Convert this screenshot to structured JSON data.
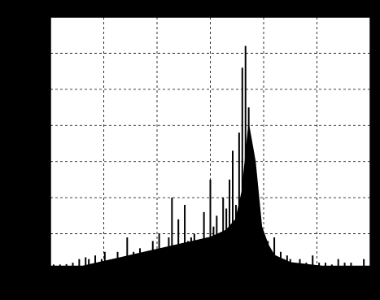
{
  "chart_data": {
    "type": "bar",
    "title": "",
    "xlabel": "",
    "ylabel": "",
    "grid": true,
    "x_grid_count": 6,
    "y_grid_count": 7,
    "xlim": [
      0,
      100
    ],
    "ylim": [
      0,
      70
    ],
    "colors": {
      "outer_background": "#000000",
      "axes_background": "#ffffff",
      "bars": "#000000",
      "grid": "#000000"
    },
    "series": [
      {
        "name": "",
        "x": [
          1,
          3,
          5,
          7,
          9,
          11,
          12,
          14,
          16,
          17,
          18,
          20,
          21,
          22,
          23,
          24,
          25,
          26,
          27,
          28,
          29,
          30,
          31,
          32,
          33,
          34,
          35,
          36,
          37,
          38,
          39,
          40,
          41,
          42,
          43,
          44,
          45,
          46,
          47,
          48,
          49,
          50,
          51,
          52,
          53,
          54,
          55,
          56,
          57,
          58,
          59,
          60,
          61,
          62,
          63,
          64,
          65,
          66,
          67,
          68,
          69,
          70,
          71,
          72,
          73,
          74,
          75,
          76,
          78,
          80,
          82,
          84,
          86,
          88,
          90,
          92,
          94,
          96,
          98
        ],
        "values": [
          1.5,
          1.5,
          1.6,
          2,
          3,
          3.5,
          3,
          4,
          3,
          5,
          2,
          3,
          5,
          3,
          2,
          9,
          4,
          5,
          2,
          6,
          3,
          5,
          4,
          8,
          3,
          10,
          4,
          6,
          9,
          20,
          6,
          14,
          5,
          18,
          8,
          9,
          10,
          7,
          8,
          16,
          9,
          25,
          12,
          15,
          10,
          20,
          17,
          25,
          33,
          18,
          38,
          56,
          62,
          45,
          20,
          10,
          12,
          8,
          6,
          8,
          4,
          9,
          3,
          5,
          3,
          4,
          3,
          2,
          3,
          2,
          4,
          2,
          2,
          1.5,
          3,
          2,
          2,
          1,
          3
        ]
      }
    ],
    "envelope": {
      "name": "",
      "x": [
        0,
        10,
        15,
        20,
        25,
        30,
        35,
        40,
        45,
        50,
        55,
        58,
        60,
        62,
        64,
        66,
        68,
        70,
        75,
        80,
        85,
        90,
        95,
        100
      ],
      "values": [
        1,
        1,
        2,
        3,
        4,
        5,
        6,
        7,
        8,
        9,
        11,
        14,
        22,
        40,
        30,
        12,
        7,
        4,
        2,
        1.5,
        1,
        1,
        1,
        1
      ]
    }
  }
}
